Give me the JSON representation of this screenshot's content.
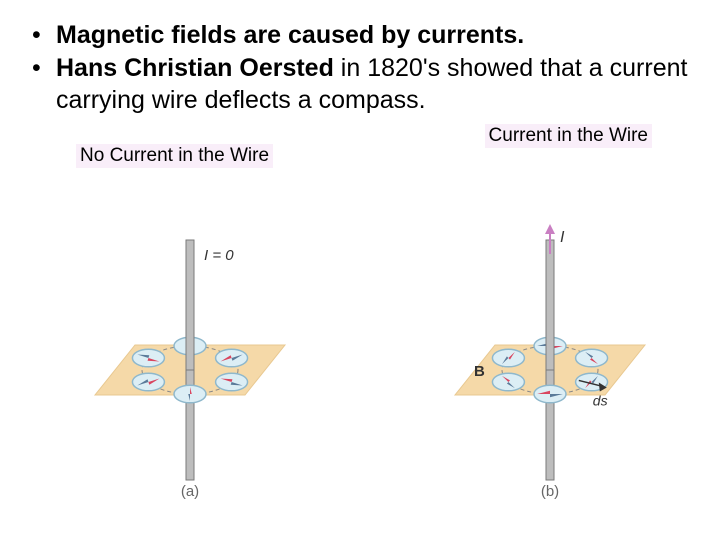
{
  "bullets": {
    "b1_bold": "Magnetic fields are caused by currents.",
    "b2_bold": "Hans Christian Oersted",
    "b2_rest": " in 1820's showed that a current carrying wire deflects a compass."
  },
  "captions": {
    "left": "No Current in the Wire",
    "right": "Current in the Wire"
  },
  "figures": {
    "a": {
      "label": "(a)",
      "current_label": "I = 0",
      "plane_fill": "#f5d9a8",
      "plane_stroke": "#e8c890",
      "wire_fill": "#bdbdbd",
      "wire_stroke": "#7a7a7a",
      "compass_fill": "#dceef5",
      "compass_stroke": "#8fb8cc",
      "needle_north": "#d9455f",
      "needle_south": "#5a7a99",
      "needle_angle_mode": "radial"
    },
    "b": {
      "label": "(b)",
      "current_label": "I",
      "arrow_color": "#c97fc2",
      "plane_fill": "#f5d9a8",
      "plane_stroke": "#e8c890",
      "wire_fill": "#bdbdbd",
      "wire_stroke": "#7a7a7a",
      "compass_fill": "#dceef5",
      "compass_stroke": "#8fb8cc",
      "needle_north": "#d9455f",
      "needle_south": "#5a7a99",
      "B_label": "B",
      "ds_label": "ds",
      "ds_arrow_color": "#333333",
      "needle_angle_mode": "tangent"
    },
    "compass_ring_radius": 48,
    "compass_count": 6,
    "compass_radius": 16
  }
}
